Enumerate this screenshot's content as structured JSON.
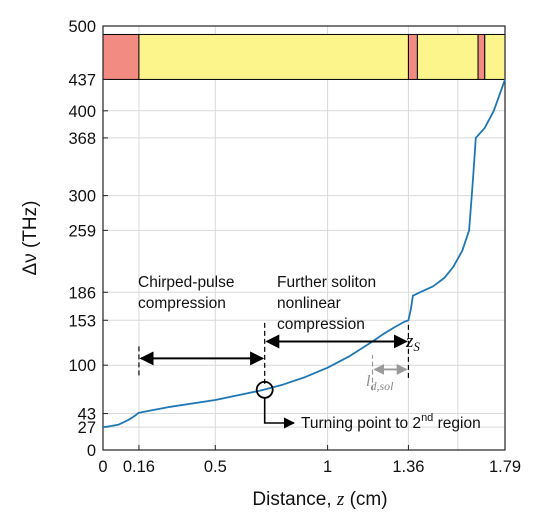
{
  "chart_data": {
    "type": "line",
    "xlabel_prefix": "Distance, ",
    "xlabel_var": "z",
    "xlabel_suffix": " (cm)",
    "ylabel": "Δν (THz)",
    "xlim": [
      0,
      1.79
    ],
    "ylim": [
      0,
      500
    ],
    "x_ticks": [
      0,
      0.16,
      0.5,
      1,
      1.36,
      1.79
    ],
    "x_tick_labels": [
      "0",
      "0.16",
      "0.5",
      "1",
      "1.36",
      "1.79"
    ],
    "x_grid": [
      0.16,
      0.5,
      1,
      1.36,
      1.58,
      1.79
    ],
    "y_ticks": [
      0,
      27,
      43,
      100,
      153,
      186,
      259,
      300,
      368,
      400,
      437,
      500
    ],
    "y_tick_labels": [
      "0",
      "27",
      "43",
      "100",
      "153",
      "186",
      "259",
      "300",
      "368",
      "400",
      "437",
      "500"
    ],
    "grid": true,
    "series": [
      {
        "color": "#1f77b4",
        "x": [
          0,
          0.03,
          0.07,
          0.11,
          0.14,
          0.16,
          0.3,
          0.5,
          0.7,
          0.8,
          0.9,
          1.0,
          1.1,
          1.2,
          1.25,
          1.3,
          1.34,
          1.36,
          1.37,
          1.38,
          1.42,
          1.47,
          1.52,
          1.56,
          1.6,
          1.63,
          1.645,
          1.65,
          1.66,
          1.7,
          1.74,
          1.79
        ],
        "y": [
          27,
          28,
          30,
          35,
          40,
          44,
          51,
          59,
          70,
          77,
          86,
          97,
          111,
          128,
          137,
          145,
          151,
          153,
          165,
          182,
          187,
          193,
          203,
          216,
          235,
          259,
          310,
          330,
          368,
          380,
          400,
          437
        ]
      }
    ],
    "regions_bar": {
      "y_range": [
        437,
        490
      ],
      "segments": [
        {
          "x": [
            0,
            0.16
          ],
          "color": "#f28b82"
        },
        {
          "x": [
            0.16,
            1.36
          ],
          "color": "#fbf58c"
        },
        {
          "x": [
            1.36,
            1.4
          ],
          "color": "#f28b82"
        },
        {
          "x": [
            1.4,
            1.67
          ],
          "color": "#fbf58c"
        },
        {
          "x": [
            1.67,
            1.7
          ],
          "color": "#f28b82"
        },
        {
          "x": [
            1.7,
            1.79
          ],
          "color": "#fbf58c"
        }
      ]
    },
    "annotations": {
      "chirped_line1": "Chirped-pulse",
      "chirped_line2": "compression",
      "further_line1": "Further soliton",
      "further_line2": "nonlinear",
      "further_line3": "compression",
      "zs_main": "z",
      "zs_sub": "S",
      "ldsol_main": "l",
      "ldsol_sub": "d,sol",
      "turning_text": "Turning point to 2",
      "turning_sup": "nd",
      "turning_text2": " region"
    },
    "turning_point": {
      "x": 0.72,
      "y": 71
    },
    "arrow_chirped": {
      "x": [
        0.16,
        0.72
      ],
      "y": 108
    },
    "arrow_further": {
      "x": [
        0.72,
        1.36
      ],
      "y": 128
    },
    "arrow_ldsol": {
      "x": [
        1.2,
        1.36
      ],
      "y": 95
    }
  }
}
